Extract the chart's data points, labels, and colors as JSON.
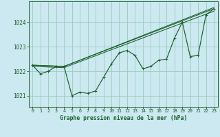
{
  "title": "Graphe pression niveau de la mer (hPa)",
  "background_color": "#cce8f0",
  "grid_color": "#99ccbb",
  "line_color": "#1a5e2a",
  "xlim": [
    -0.5,
    23.5
  ],
  "ylim": [
    1020.55,
    1024.85
  ],
  "yticks": [
    1021,
    1022,
    1023,
    1024
  ],
  "xticks": [
    0,
    1,
    2,
    3,
    4,
    5,
    6,
    7,
    8,
    9,
    10,
    11,
    12,
    13,
    14,
    15,
    16,
    17,
    18,
    19,
    20,
    21,
    22,
    23
  ],
  "series_main": {
    "x": [
      0,
      1,
      2,
      3,
      4,
      5,
      6,
      7,
      8,
      9,
      10,
      11,
      12,
      13,
      14,
      15,
      16,
      17,
      18,
      19,
      20,
      21,
      22,
      23
    ],
    "y": [
      1022.25,
      1021.9,
      1022.0,
      1022.2,
      1022.2,
      1021.0,
      1021.15,
      1021.1,
      1021.2,
      1021.75,
      1022.3,
      1022.75,
      1022.85,
      1022.65,
      1022.1,
      1022.2,
      1022.45,
      1022.5,
      1023.35,
      1024.0,
      1022.6,
      1022.65,
      1024.3,
      1024.55
    ]
  },
  "trend_lines": [
    {
      "x": [
        0,
        4,
        23
      ],
      "y": [
        1022.25,
        1022.2,
        1024.55
      ]
    },
    {
      "x": [
        0,
        4,
        23
      ],
      "y": [
        1022.25,
        1022.2,
        1024.6
      ]
    },
    {
      "x": [
        0,
        4,
        23
      ],
      "y": [
        1022.2,
        1022.15,
        1024.45
      ]
    }
  ]
}
